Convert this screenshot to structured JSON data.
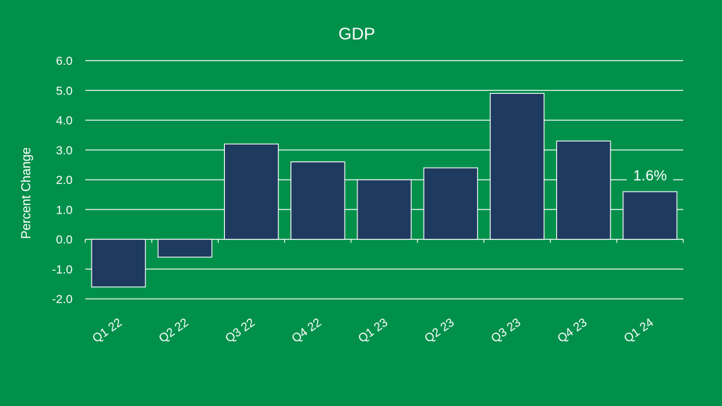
{
  "chart_data": {
    "type": "bar",
    "title": "GDP",
    "xlabel": "",
    "ylabel": "Percent Change",
    "categories": [
      "Q1 22",
      "Q2 22",
      "Q3 22",
      "Q4 22",
      "Q1 23",
      "Q2 23",
      "Q3 23",
      "Q4 23",
      "Q1 24"
    ],
    "values": [
      -1.6,
      -0.6,
      3.2,
      2.6,
      2.0,
      2.4,
      4.9,
      3.3,
      1.6
    ],
    "ylim": [
      -2.0,
      6.0
    ],
    "yticks": [
      "6.0",
      "5.0",
      "4.0",
      "3.0",
      "2.0",
      "1.0",
      "0.0",
      "-1.0",
      "-2.0"
    ],
    "grid": true,
    "legend": "none",
    "data_label": {
      "category": "Q1 24",
      "text": "1.6%"
    },
    "colors": {
      "background": "#00904a",
      "bar": "#1e3a5f",
      "bar_outline": "#ffffff",
      "text": "#ffffff"
    }
  }
}
